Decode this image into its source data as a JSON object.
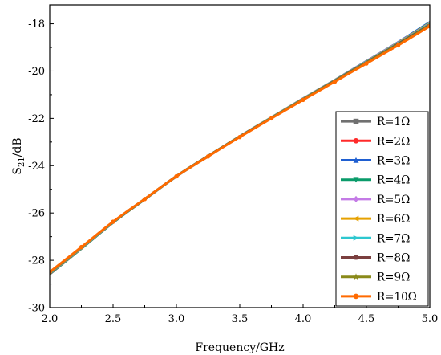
{
  "chart_data": {
    "type": "line",
    "xlabel": "Frequency/GHz",
    "ylabel_main": "S",
    "ylabel_sub": "21",
    "ylabel_rest": "/dB",
    "xlim": [
      2.0,
      5.0
    ],
    "ylim": [
      -30,
      -17.2
    ],
    "xticks": [
      2.0,
      2.5,
      3.0,
      3.5,
      4.0,
      4.5,
      5.0
    ],
    "xtick_labels": [
      "2.0",
      "2.5",
      "3.0",
      "3.5",
      "4.0",
      "4.5",
      "5.0"
    ],
    "yticks": [
      -30,
      -28,
      -26,
      -24,
      -22,
      -20,
      -18
    ],
    "ytick_labels": [
      "-30",
      "-28",
      "-26",
      "-24",
      "-22",
      "-20",
      "-18"
    ],
    "grid": false,
    "legend_position": "bottom-right",
    "x": [
      2.0,
      2.25,
      2.5,
      2.75,
      3.0,
      3.25,
      3.5,
      3.75,
      4.0,
      4.25,
      4.5,
      4.75,
      5.0
    ],
    "series": [
      {
        "name": "R=1Ω",
        "color": "#707070",
        "marker": "square",
        "values": [
          -28.6,
          -27.52,
          -26.42,
          -25.44,
          -24.47,
          -23.62,
          -22.78,
          -21.98,
          -21.18,
          -20.4,
          -19.6,
          -18.8,
          -17.95
        ]
      },
      {
        "name": "R=2Ω",
        "color": "#ff2a2a",
        "marker": "circle",
        "values": [
          -28.58,
          -27.5,
          -26.4,
          -25.42,
          -24.45,
          -23.6,
          -22.76,
          -21.96,
          -21.16,
          -20.38,
          -19.58,
          -18.78,
          -17.93
        ]
      },
      {
        "name": "R=3Ω",
        "color": "#1f5fd1",
        "marker": "triangle-up",
        "values": [
          -28.57,
          -27.49,
          -26.39,
          -25.41,
          -24.44,
          -23.59,
          -22.75,
          -21.95,
          -21.15,
          -20.37,
          -19.57,
          -18.77,
          -17.92
        ]
      },
      {
        "name": "R=4Ω",
        "color": "#0a9b6a",
        "marker": "triangle-down",
        "values": [
          -28.58,
          -27.51,
          -26.41,
          -25.43,
          -24.46,
          -23.61,
          -22.77,
          -21.97,
          -21.17,
          -20.39,
          -19.59,
          -18.79,
          -17.94
        ]
      },
      {
        "name": "R=5Ω",
        "color": "#c47be6",
        "marker": "diamond",
        "values": [
          -28.56,
          -27.49,
          -26.39,
          -25.41,
          -24.44,
          -23.59,
          -22.75,
          -21.95,
          -21.16,
          -20.38,
          -19.58,
          -18.79,
          -17.96
        ]
      },
      {
        "name": "R=6Ω",
        "color": "#e6a100",
        "marker": "triangle-left",
        "values": [
          -28.55,
          -27.48,
          -26.38,
          -25.4,
          -24.43,
          -23.58,
          -22.75,
          -21.95,
          -21.16,
          -20.38,
          -19.59,
          -18.8,
          -17.98
        ]
      },
      {
        "name": "R=7Ω",
        "color": "#2dc7cf",
        "marker": "triangle-right",
        "values": [
          -28.54,
          -27.47,
          -26.37,
          -25.4,
          -24.43,
          -23.58,
          -22.75,
          -21.96,
          -21.17,
          -20.39,
          -19.6,
          -18.82,
          -18.0
        ]
      },
      {
        "name": "R=8Ω",
        "color": "#7b3f3f",
        "marker": "hexagon",
        "values": [
          -28.53,
          -27.46,
          -26.37,
          -25.4,
          -24.43,
          -23.58,
          -22.76,
          -21.97,
          -21.18,
          -20.4,
          -19.62,
          -18.84,
          -18.03
        ]
      },
      {
        "name": "R=9Ω",
        "color": "#8a8a1a",
        "marker": "star",
        "values": [
          -28.52,
          -27.45,
          -26.37,
          -25.4,
          -24.44,
          -23.59,
          -22.77,
          -21.98,
          -21.19,
          -20.42,
          -19.64,
          -18.87,
          -18.06
        ]
      },
      {
        "name": "R=10Ω",
        "color": "#ff6a00",
        "marker": "circle",
        "values": [
          -28.5,
          -27.44,
          -26.37,
          -25.41,
          -24.45,
          -23.61,
          -22.79,
          -22.0,
          -21.22,
          -20.45,
          -19.68,
          -18.91,
          -18.1
        ]
      }
    ]
  }
}
